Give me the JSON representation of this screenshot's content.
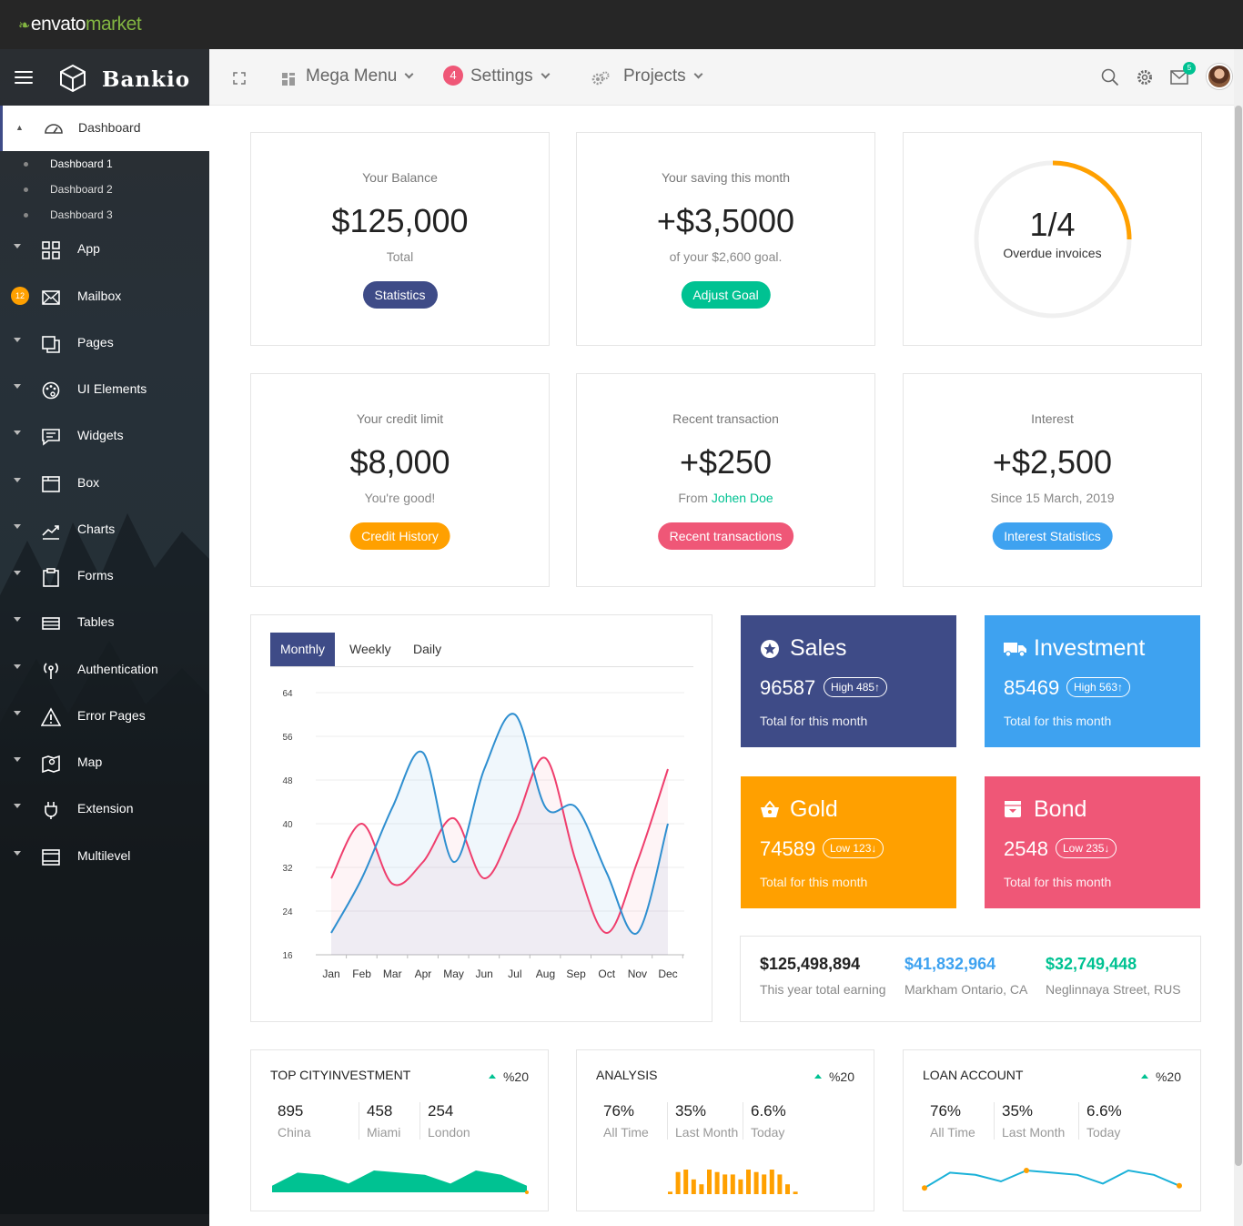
{
  "envato": {
    "brand": "envato",
    "brand_suffix": "market"
  },
  "sidebar": {
    "brand": "Bankio",
    "active": "Dashboard",
    "submenu": [
      "Dashboard 1",
      "Dashboard 2",
      "Dashboard 3"
    ],
    "items": [
      {
        "label": "App",
        "icon": "grid-icon"
      },
      {
        "label": "Mailbox",
        "icon": "envelope-icon",
        "badge": "12"
      },
      {
        "label": "Pages",
        "icon": "pages-icon"
      },
      {
        "label": "UI Elements",
        "icon": "palette-icon"
      },
      {
        "label": "Widgets",
        "icon": "chat-icon"
      },
      {
        "label": "Box",
        "icon": "box-icon"
      },
      {
        "label": "Charts",
        "icon": "trend-icon"
      },
      {
        "label": "Forms",
        "icon": "clipboard-icon"
      },
      {
        "label": "Tables",
        "icon": "table-icon"
      },
      {
        "label": "Authentication",
        "icon": "antenna-icon"
      },
      {
        "label": "Error Pages",
        "icon": "warning-icon"
      },
      {
        "label": "Map",
        "icon": "map-icon"
      },
      {
        "label": "Extension",
        "icon": "plug-icon"
      },
      {
        "label": "Multilevel",
        "icon": "layers-icon"
      }
    ]
  },
  "header": {
    "mega_menu": "Mega Menu",
    "settings_badge": "4",
    "settings": "Settings",
    "projects": "Projects",
    "mail_badge": "5"
  },
  "stats": [
    {
      "title": "Your Balance",
      "value": "$125,000",
      "sub": "Total",
      "button": "Statistics",
      "color": "#3e4b87"
    },
    {
      "title": "Your saving this month",
      "value": "+$3,5000",
      "sub": "of your $2,600 goal.",
      "button": "Adjust Goal",
      "color": "#00c292"
    },
    {
      "title": "Your credit limit",
      "value": "$8,000",
      "sub": "You're good!",
      "button": "Credit History",
      "color": "#ffa000"
    },
    {
      "title": "Recent transaction",
      "value": "+$250",
      "sub_prefix": "From ",
      "sub_highlight": "Johen Doe",
      "button": "Recent transactions",
      "color": "#ef5777"
    },
    {
      "title": "Interest",
      "value": "+$2,500",
      "sub": "Since 15 March, 2019",
      "button": "Interest Statistics",
      "color": "#3ea2f0"
    }
  ],
  "invoices": {
    "value": "1/4",
    "label": "Overdue invoices",
    "fraction": 0.25,
    "color": "#ffa000"
  },
  "chart_tabs": [
    "Monthly",
    "Weekly",
    "Daily"
  ],
  "chart_data": {
    "type": "line",
    "categories": [
      "Jan",
      "Feb",
      "Mar",
      "Apr",
      "May",
      "Jun",
      "Jul",
      "Aug",
      "Sep",
      "Oct",
      "Nov",
      "Dec"
    ],
    "yticks": [
      16,
      24,
      32,
      40,
      48,
      56,
      64
    ],
    "ylim": [
      16,
      64
    ],
    "series": [
      {
        "color": "#ef3e6d",
        "values": [
          30,
          40,
          29,
          33,
          41,
          30,
          40,
          52,
          33,
          20,
          33,
          50
        ]
      },
      {
        "color": "#2f8fd0",
        "values": [
          20,
          30,
          43,
          53,
          33,
          50,
          60,
          43,
          43,
          31,
          20,
          40
        ]
      }
    ],
    "grid": true
  },
  "tiles": [
    {
      "title": "Sales",
      "icon": "star-icon",
      "value": "96587",
      "badge": "High  485↑",
      "footer": "Total for this month",
      "color": "#3e4b87"
    },
    {
      "title": "Investment",
      "icon": "truck-icon",
      "value": "85469",
      "badge": "High  563↑",
      "footer": "Total for this month",
      "color": "#3ea2f0"
    },
    {
      "title": "Gold",
      "icon": "basket-icon",
      "value": "74589",
      "badge": "Low  123↓",
      "footer": "Total for this month",
      "color": "#ffa000"
    },
    {
      "title": "Bond",
      "icon": "download-box-icon",
      "value": "2548",
      "badge": "Low  235↓",
      "footer": "Total for this month",
      "color": "#ef5777"
    }
  ],
  "earnings": [
    {
      "value": "$125,498,894",
      "label": "This year total earning",
      "color": "#222222"
    },
    {
      "value": "$41,832,964",
      "label": "Markham Ontario, CA",
      "color": "#3ea2f0"
    },
    {
      "value": "$32,749,448",
      "label": "Neglinnaya Street, RUS",
      "color": "#00c292"
    }
  ],
  "mini_cards": [
    {
      "title": "TOP CITYINVESTMENT",
      "percent": "%20",
      "stats": [
        [
          "895",
          "China"
        ],
        [
          "458",
          "Miami"
        ],
        [
          "254",
          "London"
        ]
      ],
      "spark": "area",
      "color": "#00c292",
      "values": [
        3,
        9,
        8,
        4,
        10,
        9,
        8,
        4,
        10,
        8,
        3
      ]
    },
    {
      "title": "ANALYSIS",
      "percent": "%20",
      "stats": [
        [
          "76%",
          "All Time"
        ],
        [
          "35%",
          "Last Month"
        ],
        [
          "6.6%",
          "Today"
        ]
      ],
      "spark": "bar",
      "color": "#ffa000",
      "values": [
        1,
        9,
        10,
        6,
        4,
        10,
        9,
        8,
        8,
        6,
        10,
        9,
        8,
        10,
        8,
        4,
        1
      ]
    },
    {
      "title": "LOAN ACCOUNT",
      "percent": "%20",
      "stats": [
        [
          "76%",
          "All Time"
        ],
        [
          "35%",
          "Last Month"
        ],
        [
          "6.6%",
          "Today"
        ]
      ],
      "spark": "line",
      "color": "#1ab1d8",
      "values": [
        2,
        9,
        8,
        5,
        10,
        9,
        8,
        4,
        10,
        8,
        3
      ]
    }
  ]
}
